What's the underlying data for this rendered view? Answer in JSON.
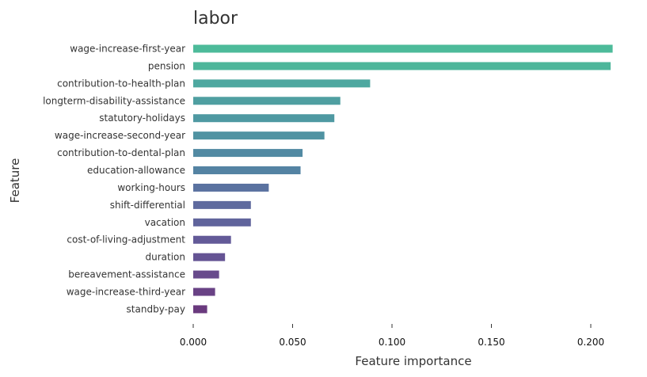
{
  "chart_data": {
    "type": "bar",
    "orientation": "horizontal",
    "title": "labor",
    "xlabel": "Feature importance",
    "ylabel": "Feature",
    "categories": [
      "wage-increase-first-year",
      "pension",
      "contribution-to-health-plan",
      "longterm-disability-assistance",
      "statutory-holidays",
      "wage-increase-second-year",
      "contribution-to-dental-plan",
      "education-allowance",
      "working-hours",
      "shift-differential",
      "vacation",
      "cost-of-living-adjustment",
      "duration",
      "bereavement-assistance",
      "wage-increase-third-year",
      "standby-pay"
    ],
    "values": [
      0.211,
      0.21,
      0.089,
      0.074,
      0.071,
      0.066,
      0.055,
      0.054,
      0.038,
      0.029,
      0.029,
      0.019,
      0.016,
      0.013,
      0.011,
      0.007
    ],
    "colors": [
      "#4dbb9a",
      "#4db69b",
      "#4ea8a0",
      "#4f9fa1",
      "#4f99a2",
      "#5093a2",
      "#528aa3",
      "#5483a3",
      "#5a72a0",
      "#5e6a9e",
      "#60649c",
      "#635a98",
      "#655494",
      "#684b8c",
      "#694285",
      "#6a3a7e"
    ],
    "xlim": [
      0,
      0.22
    ],
    "xticks": [
      0,
      0.05,
      0.1,
      0.15,
      0.2
    ],
    "xtick_labels": [
      "0.000",
      "0.050",
      "0.100",
      "0.150",
      "0.200"
    ],
    "grid": false,
    "legend": "none"
  }
}
